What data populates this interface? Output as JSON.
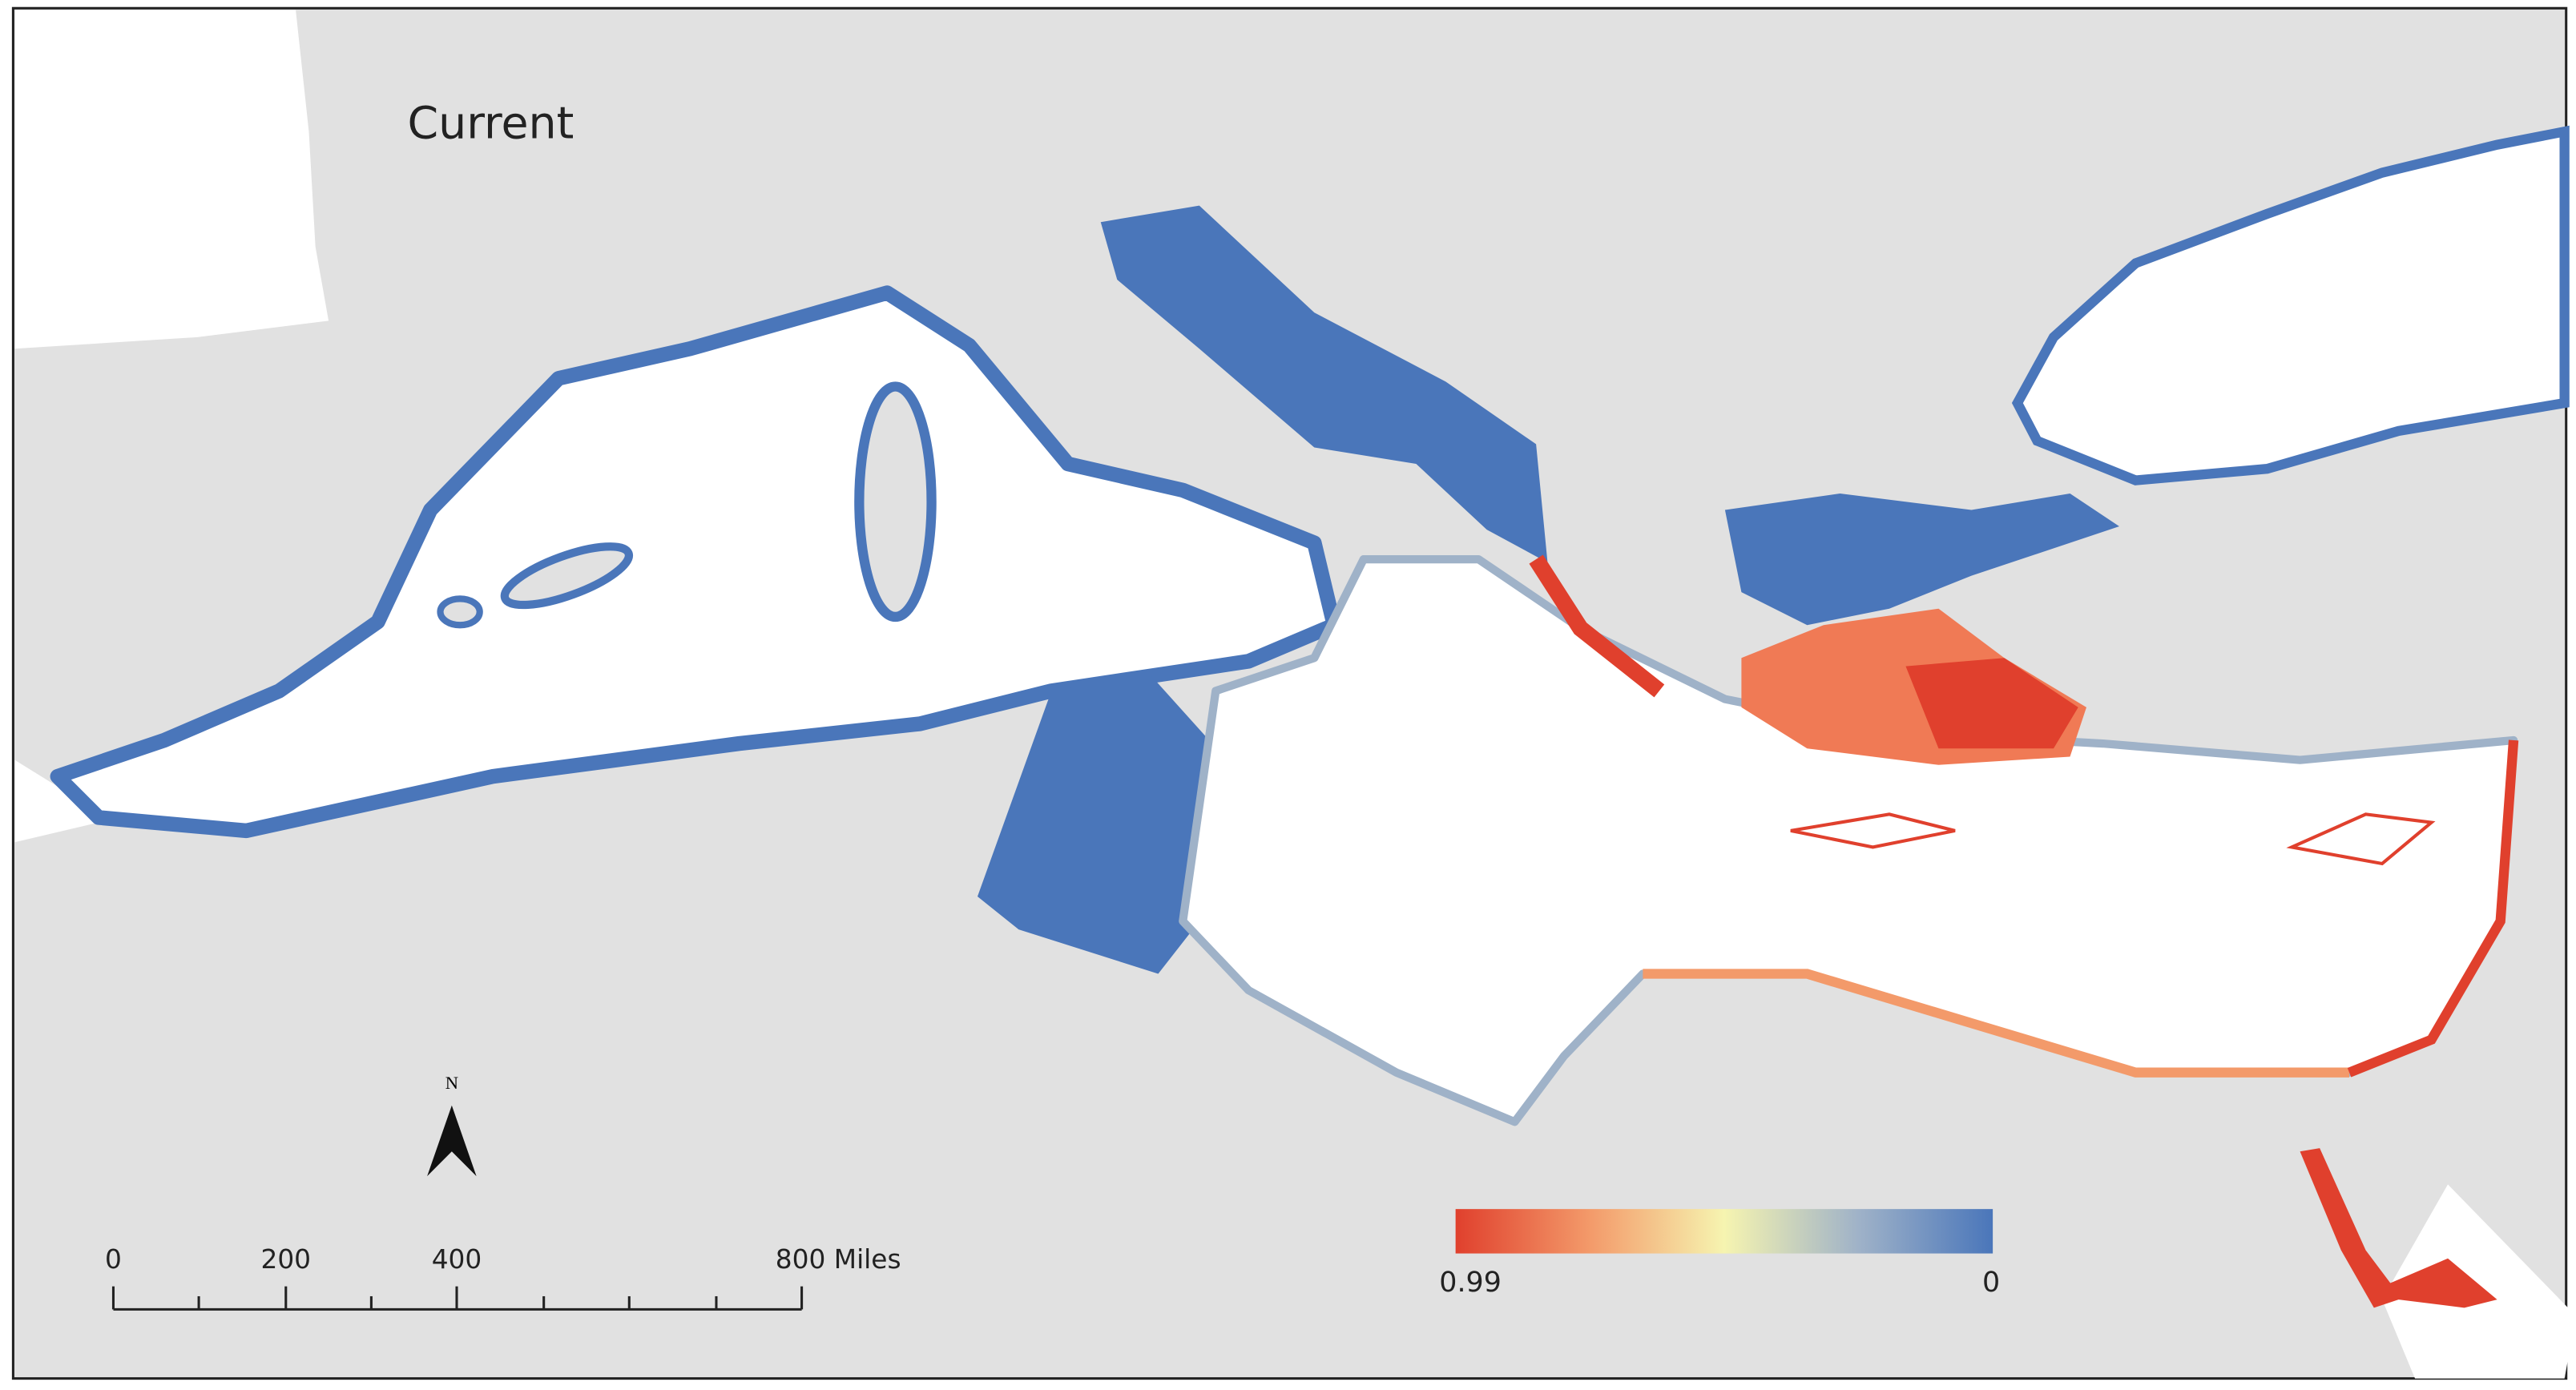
{
  "title": "Current",
  "north_label": "N",
  "scale_bar": {
    "labels": [
      "0",
      "200",
      "400",
      "800 Miles"
    ]
  },
  "legend": {
    "labels": [
      "0.99",
      "0"
    ]
  }
}
